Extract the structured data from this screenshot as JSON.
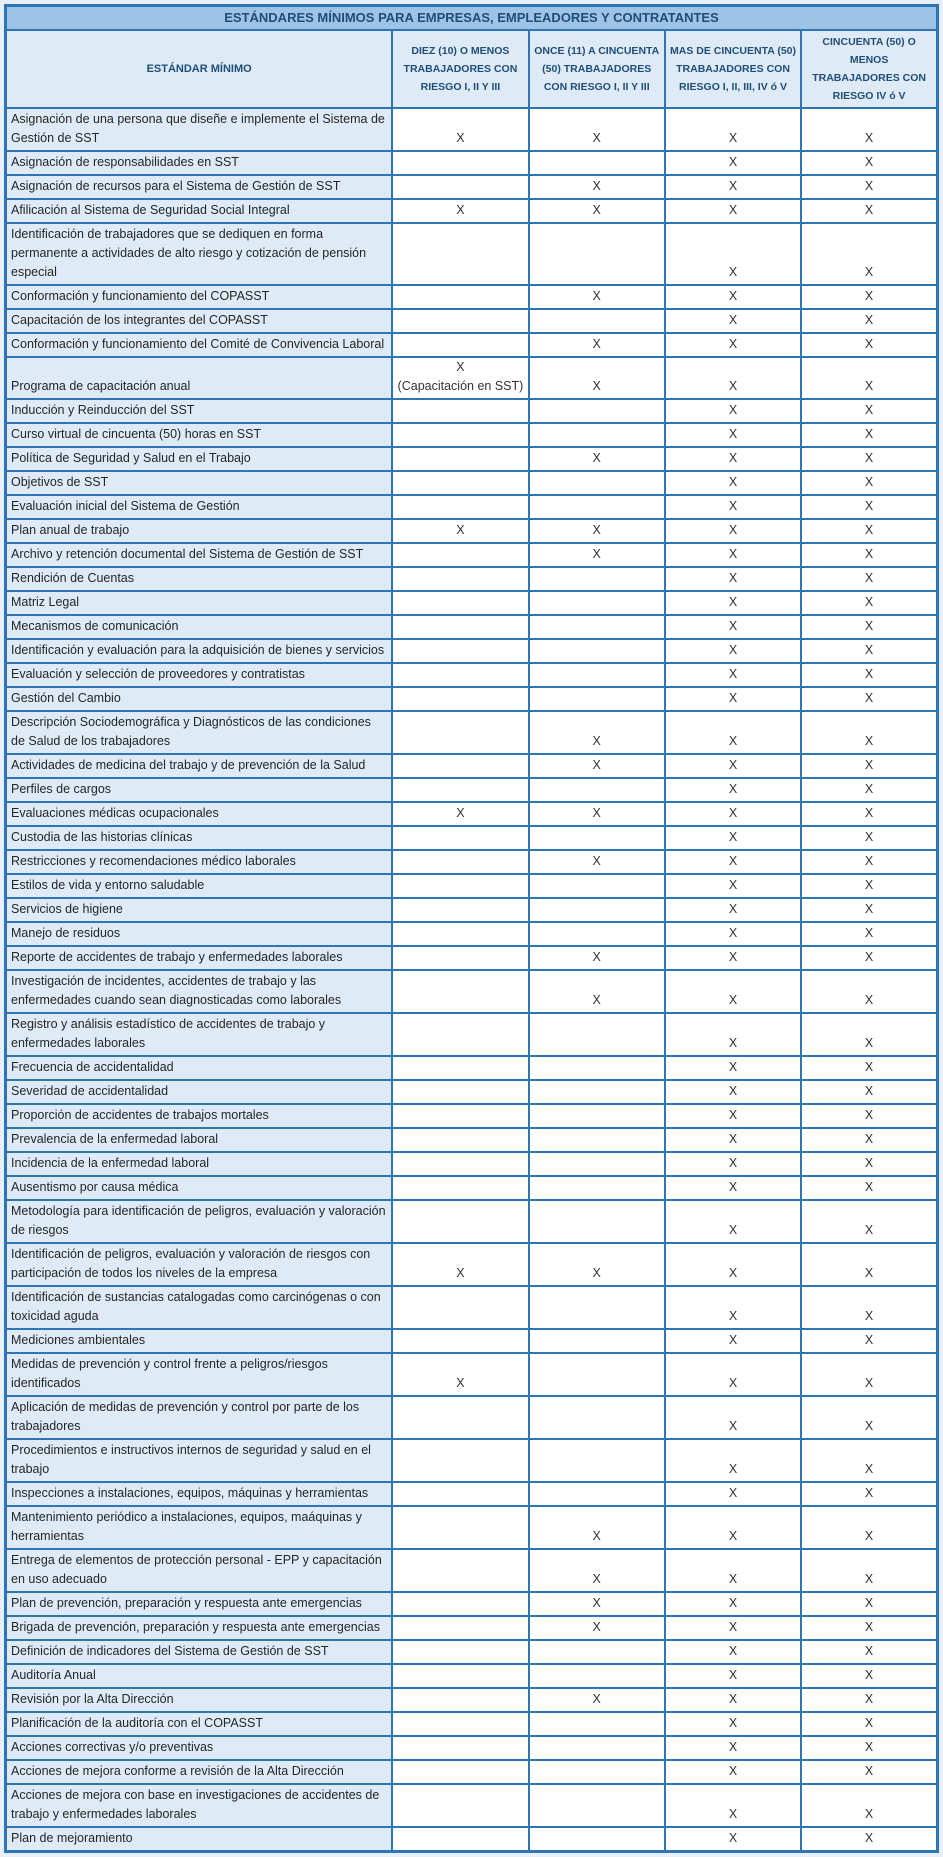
{
  "title": "ESTÁNDARES MÍNIMOS PARA EMPRESAS, EMPLEADORES Y CONTRATANTES",
  "columns": [
    "ESTÁNDAR MÍNIMO",
    "DIEZ (10) O MENOS TRABAJADORES CON RIESGO I, II Y III",
    "ONCE (11) A CINCUENTA (50) TRABAJADORES CON RIESGO I, II Y III",
    "MAS DE CINCUENTA (50) TRABAJADORES CON RIESGO I, II, III, IV ó V",
    "CINCUENTA (50) O MENOS TRABAJADORES CON RIESGO IV ó V"
  ],
  "mark_glyph": "X",
  "colors": {
    "border-color": "#2E75B6",
    "title-bg": "#9DC3E6",
    "shade-bg": "#DEEAF6",
    "page-bg": "#E9EFF9",
    "head-text": "#1F4E79",
    "body-text": "#262626",
    "mark-text": "#333333",
    "cell-bg": "#FFFFFF"
  },
  "rows": [
    {
      "label": "Asignación de una persona que diseñe e implemente el Sistema de Gestión de SST",
      "marks": [
        "X",
        "X",
        "X",
        "X"
      ]
    },
    {
      "label": "Asignación de responsabilidades en SST",
      "marks": [
        "",
        "",
        "X",
        "X"
      ]
    },
    {
      "label": "Asignación de recursos para el Sistema de Gestión de SST",
      "marks": [
        "",
        "X",
        "X",
        "X"
      ]
    },
    {
      "label": "Afilicación al Sistema de Seguridad Social Integral",
      "marks": [
        "X",
        "X",
        "X",
        "X"
      ]
    },
    {
      "label": "Identificación de trabajadores que se dediquen en forma permanente a actividades de alto riesgo y cotización de pensión especial",
      "marks": [
        "",
        "",
        "X",
        "X"
      ]
    },
    {
      "label": "Conformación y funcionamiento del COPASST",
      "marks": [
        "",
        "X",
        "X",
        "X"
      ]
    },
    {
      "label": "Capacitación de los integrantes del COPASST",
      "marks": [
        "",
        "",
        "X",
        "X"
      ]
    },
    {
      "label": "Conformación y funcionamiento del Comité de Convivencia Laboral",
      "marks": [
        "",
        "X",
        "X",
        "X"
      ]
    },
    {
      "label": "Programa de capacitación anual",
      "marks": [
        "X\n(Capacitación en SST)",
        "X",
        "X",
        "X"
      ]
    },
    {
      "label": "Inducción y Reinducción del SST",
      "marks": [
        "",
        "",
        "X",
        "X"
      ]
    },
    {
      "label": "Curso virtual de cincuenta (50) horas en SST",
      "marks": [
        "",
        "",
        "X",
        "X"
      ]
    },
    {
      "label": "Política de Seguridad y Salud en el Trabajo",
      "marks": [
        "",
        "X",
        "X",
        "X"
      ]
    },
    {
      "label": "Objetivos de SST",
      "marks": [
        "",
        "",
        "X",
        "X"
      ]
    },
    {
      "label": "Evaluación inicial del Sistema de Gestión",
      "marks": [
        "",
        "",
        "X",
        "X"
      ]
    },
    {
      "label": "Plan anual de trabajo",
      "marks": [
        "X",
        "X",
        "X",
        "X"
      ]
    },
    {
      "label": "Archivo y retención documental del Sistema de Gestión de SST",
      "marks": [
        "",
        "X",
        "X",
        "X"
      ]
    },
    {
      "label": "Rendición de Cuentas",
      "marks": [
        "",
        "",
        "X",
        "X"
      ]
    },
    {
      "label": "Matriz Legal",
      "marks": [
        "",
        "",
        "X",
        "X"
      ]
    },
    {
      "label": "Mecanismos de comunicación",
      "marks": [
        "",
        "",
        "X",
        "X"
      ]
    },
    {
      "label": "Identificación y evaluación para la adquisición de bienes y servicios",
      "marks": [
        "",
        "",
        "X",
        "X"
      ]
    },
    {
      "label": "Evaluación y selección de proveedores y contratistas",
      "marks": [
        "",
        "",
        "X",
        "X"
      ]
    },
    {
      "label": "Gestión del Cambio",
      "marks": [
        "",
        "",
        "X",
        "X"
      ]
    },
    {
      "label": "Descripción Sociodemográfica y Diagnósticos de las condiciones de Salud de los trabajadores",
      "marks": [
        "",
        "X",
        "X",
        "X"
      ]
    },
    {
      "label": "Actividades de medicina del trabajo y de prevención de la Salud",
      "marks": [
        "",
        "X",
        "X",
        "X"
      ]
    },
    {
      "label": "Perfiles de cargos",
      "marks": [
        "",
        "",
        "X",
        "X"
      ]
    },
    {
      "label": "Evaluaciones médicas ocupacionales",
      "marks": [
        "X",
        "X",
        "X",
        "X"
      ]
    },
    {
      "label": "Custodia de las historias clínicas",
      "marks": [
        "",
        "",
        "X",
        "X"
      ]
    },
    {
      "label": "Restricciones y recomendaciones médico laborales",
      "marks": [
        "",
        "X",
        "X",
        "X"
      ]
    },
    {
      "label": "Estilos de vida y entorno saludable",
      "marks": [
        "",
        "",
        "X",
        "X"
      ]
    },
    {
      "label": "Servicios de higiene",
      "marks": [
        "",
        "",
        "X",
        "X"
      ]
    },
    {
      "label": "Manejo de residuos",
      "marks": [
        "",
        "",
        "X",
        "X"
      ]
    },
    {
      "label": "Reporte de accidentes de trabajo y enfermedades laborales",
      "marks": [
        "",
        "X",
        "X",
        "X"
      ]
    },
    {
      "label": "Investigación de incidentes, accidentes de trabajo y las enfermedades cuando sean diagnosticadas como laborales",
      "marks": [
        "",
        "X",
        "X",
        "X"
      ]
    },
    {
      "label": "Registro y análisis estadístico de accidentes de trabajo y enfermedades laborales",
      "marks": [
        "",
        "",
        "X",
        "X"
      ]
    },
    {
      "label": "Frecuencia de accidentalidad",
      "marks": [
        "",
        "",
        "X",
        "X"
      ]
    },
    {
      "label": "Severidad de accidentalidad",
      "marks": [
        "",
        "",
        "X",
        "X"
      ]
    },
    {
      "label": "Proporción de accidentes de trabajos mortales",
      "marks": [
        "",
        "",
        "X",
        "X"
      ]
    },
    {
      "label": "Prevalencia de la enfermedad laboral",
      "marks": [
        "",
        "",
        "X",
        "X"
      ]
    },
    {
      "label": "Incidencia de la enfermedad laboral",
      "marks": [
        "",
        "",
        "X",
        "X"
      ]
    },
    {
      "label": "Ausentismo por causa médica",
      "marks": [
        "",
        "",
        "X",
        "X"
      ]
    },
    {
      "label": "Metodología para identificación de peligros, evaluación y valoración de riesgos",
      "marks": [
        "",
        "",
        "X",
        "X"
      ]
    },
    {
      "label": "Identificación de peligros, evaluación y valoración de riesgos con participación de todos los niveles de la empresa",
      "marks": [
        "X",
        "X",
        "X",
        "X"
      ]
    },
    {
      "label": "Identificación de sustancias catalogadas como carcinógenas o con toxicidad aguda",
      "marks": [
        "",
        "",
        "X",
        "X"
      ]
    },
    {
      "label": "Mediciones ambientales",
      "marks": [
        "",
        "",
        "X",
        "X"
      ]
    },
    {
      "label": "Medidas de prevención y control frente a peligros/riesgos identificados",
      "marks": [
        "X",
        "",
        "X",
        "X"
      ]
    },
    {
      "label": "Aplicación de medidas de prevención y control por parte de los trabajadores",
      "marks": [
        "",
        "",
        "X",
        "X"
      ]
    },
    {
      "label": "Procedimientos e instructivos internos de seguridad y salud en el trabajo",
      "marks": [
        "",
        "",
        "X",
        "X"
      ]
    },
    {
      "label": "Inspecciones a instalaciones, equipos, máquinas y herramientas",
      "marks": [
        "",
        "",
        "X",
        "X"
      ]
    },
    {
      "label": "Mantenimiento periódico a instalaciones, equipos, maáquinas y herramientas",
      "marks": [
        "",
        "X",
        "X",
        "X"
      ]
    },
    {
      "label": "Entrega de elementos de protección personal - EPP y capacitación en uso adecuado",
      "marks": [
        "",
        "X",
        "X",
        "X"
      ]
    },
    {
      "label": "Plan de prevención, preparación y respuesta ante emergencias",
      "marks": [
        "",
        "X",
        "X",
        "X"
      ]
    },
    {
      "label": "Brigada de prevención, preparación y respuesta ante emergencias",
      "marks": [
        "",
        "X",
        "X",
        "X"
      ]
    },
    {
      "label": "Definición de indicadores del Sistema de Gestión de SST",
      "marks": [
        "",
        "",
        "X",
        "X"
      ]
    },
    {
      "label": "Auditoría Anual",
      "marks": [
        "",
        "",
        "X",
        "X"
      ]
    },
    {
      "label": "Revisión por la Alta Dirección",
      "marks": [
        "",
        "X",
        "X",
        "X"
      ]
    },
    {
      "label": "Planificación de la auditoría con el COPASST",
      "marks": [
        "",
        "",
        "X",
        "X"
      ]
    },
    {
      "label": "Acciones correctivas y/o preventivas",
      "marks": [
        "",
        "",
        "X",
        "X"
      ]
    },
    {
      "label": "Acciones de mejora conforme a revisión de la Alta Dirección",
      "marks": [
        "",
        "",
        "X",
        "X"
      ]
    },
    {
      "label": "Acciones de mejora con base en investigaciones de accidentes de trabajo y enfermedades laborales",
      "marks": [
        "",
        "",
        "X",
        "X"
      ]
    },
    {
      "label": "Plan de mejoramiento",
      "marks": [
        "",
        "",
        "X",
        "X"
      ]
    }
  ]
}
